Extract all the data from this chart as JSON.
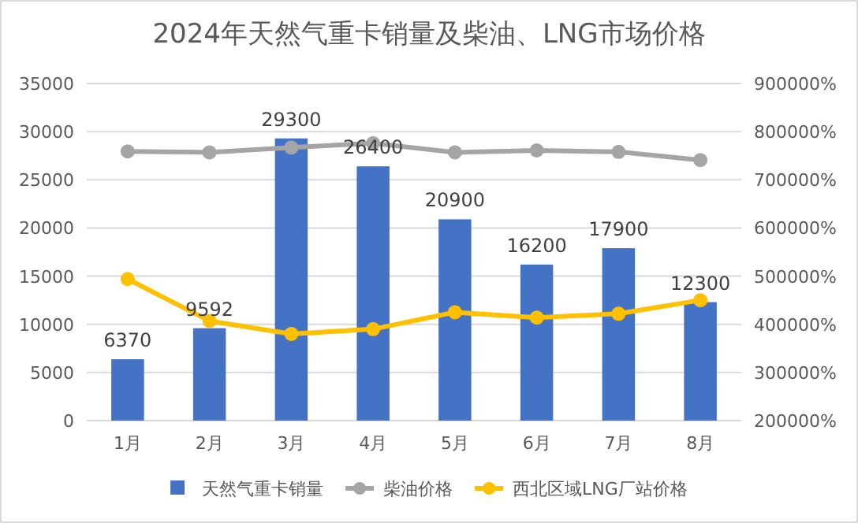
{
  "chart_data": {
    "type": "bar",
    "title": "2024年天然气重卡销量及柴油、LNG市场价格",
    "categories": [
      "1月",
      "2月",
      "3月",
      "4月",
      "5月",
      "6月",
      "7月",
      "8月"
    ],
    "series": [
      {
        "name": "天然气重卡销量",
        "color": "#4472c4",
        "values": [
          6370,
          9592,
          29300,
          26400,
          20900,
          16200,
          17900,
          12300
        ],
        "data_labels": true
      },
      {
        "name": "柴油价格",
        "type": "line",
        "axis": "y2",
        "color": "#a5a5a5",
        "marker": "circle",
        "values": [
          759000,
          757000,
          767000,
          776000,
          757000,
          761000,
          758000,
          741000
        ]
      },
      {
        "name": "西北区域LNG厂站价格",
        "type": "line",
        "axis": "y2",
        "color": "#ffc000",
        "marker": "circle",
        "values": [
          494000,
          407000,
          380000,
          390000,
          425000,
          414000,
          422000,
          450000
        ]
      }
    ],
    "ylim": [
      0,
      35000
    ],
    "yticks": [
      0,
      5000,
      10000,
      15000,
      20000,
      25000,
      30000,
      35000
    ],
    "y2lim": [
      200000,
      900000
    ],
    "y2ticks": [
      {
        "value": 200000,
        "label": "200000%"
      },
      {
        "value": 300000,
        "label": "300000%"
      },
      {
        "value": 400000,
        "label": "400000%"
      },
      {
        "value": 500000,
        "label": "500000%"
      },
      {
        "value": 600000,
        "label": "600000%"
      },
      {
        "value": 700000,
        "label": "700000%"
      },
      {
        "value": 800000,
        "label": "800000%"
      },
      {
        "value": 900000,
        "label": "900000%"
      }
    ],
    "grid": "y",
    "legend": "bottom"
  }
}
